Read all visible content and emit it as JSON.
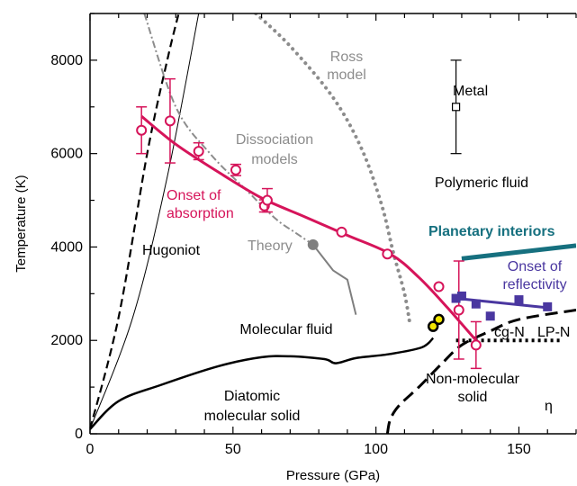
{
  "colors": {
    "onset_absorption": "#d6145a",
    "onset_reflectivity": "#4a37a0",
    "planetary_interiors": "#16707f",
    "dissociation_models": "#8c8c8c",
    "ross_model": "#8c8c8c",
    "theory": "#7f7f7f",
    "phase_boundary": "#000000",
    "cg_n_marker_fill": "#f2e600"
  },
  "chart_data": {
    "type": "line",
    "xlabel": "Pressure (GPa)",
    "ylabel": "Temperature (K)",
    "xlim": [
      0,
      170
    ],
    "ylim": [
      0,
      9000
    ],
    "xticks": [
      0,
      50,
      100,
      150
    ],
    "yticks": [
      0,
      2000,
      4000,
      6000,
      8000
    ],
    "grid": false,
    "series": {
      "onset_of_absorption": {
        "fit": [
          [
            18,
            6800
          ],
          [
            30,
            6200
          ],
          [
            45,
            5600
          ],
          [
            60,
            5050
          ],
          [
            75,
            4650
          ],
          [
            90,
            4250
          ],
          [
            105,
            3850
          ],
          [
            115,
            3350
          ],
          [
            125,
            2700
          ],
          [
            135,
            2000
          ]
        ],
        "points": [
          {
            "x": 18,
            "y": 6500,
            "err": 500
          },
          {
            "x": 28,
            "y": 6700,
            "err": 900
          },
          {
            "x": 38,
            "y": 6050,
            "err": 180
          },
          {
            "x": 51,
            "y": 5650,
            "err": 120
          },
          {
            "x": 61,
            "y": 4880,
            "err": 130
          },
          {
            "x": 62,
            "y": 5000,
            "err": 250
          },
          {
            "x": 88,
            "y": 4320,
            "err": 0
          },
          {
            "x": 104,
            "y": 3850,
            "err": 0
          },
          {
            "x": 122,
            "y": 3150,
            "err": 0
          },
          {
            "x": 129,
            "y": 2650,
            "err": 1050
          },
          {
            "x": 135,
            "y": 1900,
            "err": 500
          }
        ]
      },
      "onset_of_reflectivity": {
        "fit": [
          [
            128,
            2900
          ],
          [
            160,
            2700
          ]
        ],
        "points": [
          [
            128,
            2900
          ],
          [
            130,
            2950
          ],
          [
            135,
            2780
          ],
          [
            140,
            2520
          ],
          [
            150,
            2870
          ],
          [
            160,
            2720
          ]
        ]
      },
      "planetary_interiors": [
        [
          130,
          3750
        ],
        [
          170,
          4030
        ]
      ],
      "dissociation_models": [
        [
          19,
          9000
        ],
        [
          30,
          7000
        ],
        [
          42,
          6000
        ],
        [
          55,
          5200
        ],
        [
          65,
          4600
        ],
        [
          72,
          4300
        ],
        [
          78,
          4050
        ]
      ],
      "theory": {
        "point": [
          78,
          4050
        ],
        "line": [
          [
            78,
            4050
          ],
          [
            85,
            3500
          ],
          [
            90,
            3300
          ],
          [
            93,
            2550
          ]
        ]
      },
      "ross_model": [
        [
          58,
          9000
        ],
        [
          70,
          8300
        ],
        [
          85,
          7200
        ],
        [
          95,
          6100
        ],
        [
          102,
          4900
        ],
        [
          106,
          3900
        ],
        [
          110,
          3000
        ],
        [
          112,
          2300
        ]
      ],
      "hugoniot": {
        "dashed": [
          [
            0,
            100
          ],
          [
            10,
            2500
          ],
          [
            20,
            6000
          ],
          [
            27,
            8000
          ],
          [
            31,
            9000
          ]
        ],
        "solid": [
          [
            0,
            100
          ],
          [
            15,
            2500
          ],
          [
            27,
            5500
          ],
          [
            38,
            9000
          ]
        ]
      },
      "melting_curve": [
        [
          0,
          100
        ],
        [
          10,
          700
        ],
        [
          25,
          1050
        ],
        [
          45,
          1450
        ],
        [
          60,
          1640
        ],
        [
          70,
          1660
        ],
        [
          82,
          1600
        ],
        [
          86,
          1510
        ],
        [
          93,
          1620
        ],
        [
          105,
          1710
        ],
        [
          116,
          1850
        ],
        [
          120,
          2050
        ]
      ],
      "non_molecular_boundary": [
        [
          104,
          0
        ],
        [
          105,
          300
        ],
        [
          108,
          600
        ],
        [
          115,
          1000
        ],
        [
          123,
          1500
        ],
        [
          130,
          1900
        ],
        [
          140,
          2200
        ],
        [
          150,
          2450
        ],
        [
          170,
          2650
        ]
      ],
      "lp_n_boundary": [
        [
          128,
          2000
        ],
        [
          165,
          2000
        ]
      ],
      "cg_n_points": [
        [
          120,
          2300
        ],
        [
          122,
          2450
        ]
      ],
      "metal_point": {
        "x": 128,
        "y": 7000,
        "err": 1000
      }
    },
    "annotations": {
      "ross_model": "Ross\nmodel",
      "metal": "Metal",
      "dissociation_models": "Dissociation\nmodels",
      "polymeric_fluid": "Polymeric fluid",
      "onset_of_absorption": "Onset of\nabsorption",
      "planetary_interiors": "Planetary interiors",
      "hugoniot": "Hugoniot",
      "theory": "Theory",
      "onset_of_reflectivity": "Onset of\nreflectivity",
      "molecular_fluid": "Molecular fluid",
      "cg_n": "cg-N",
      "lp_n": "LP-N",
      "non_molecular_solid": "Non-molecular\nsolid",
      "eta": "η",
      "diatomic_molecular_solid": "Diatomic\nmolecular solid"
    }
  }
}
